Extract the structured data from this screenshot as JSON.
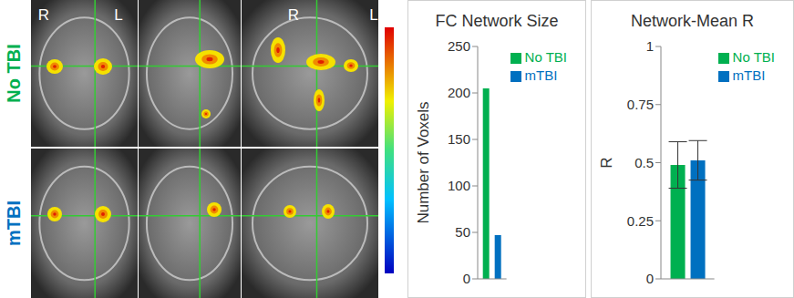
{
  "image": {
    "row_labels": [
      {
        "text": "No TBI",
        "color": "#00b050"
      },
      {
        "text": "mTBI",
        "color": "#0070c0"
      }
    ],
    "side_labels": [
      "R",
      "L",
      "R",
      "L"
    ]
  },
  "chart_data": [
    {
      "type": "bar",
      "title": "FC Network Size",
      "y_label": "Number of Voxels",
      "categories": [
        null
      ],
      "series": [
        {
          "name": "No TBI",
          "color": "#00b050",
          "values": [
            205
          ]
        },
        {
          "name": "mTBI",
          "color": "#0070c0",
          "values": [
            47
          ]
        }
      ],
      "ylim": [
        0,
        250
      ],
      "yticks": [
        0,
        50,
        100,
        150,
        200,
        250
      ],
      "legend": "upper right",
      "tick_labels": "y"
    },
    {
      "type": "bar",
      "title": "Network-Mean R",
      "y_label": "R",
      "categories": [
        null
      ],
      "series": [
        {
          "name": "No TBI",
          "color": "#00b050",
          "values": [
            0.49
          ],
          "errors": [
            0.1
          ]
        },
        {
          "name": "mTBI",
          "color": "#0070c0",
          "values": [
            0.51
          ],
          "errors": [
            0.085
          ]
        }
      ],
      "ylim": [
        0,
        1
      ],
      "yticks": [
        0,
        0.25,
        0.5,
        0.75,
        1
      ],
      "legend": "upper right",
      "tick_labels": "y"
    }
  ]
}
